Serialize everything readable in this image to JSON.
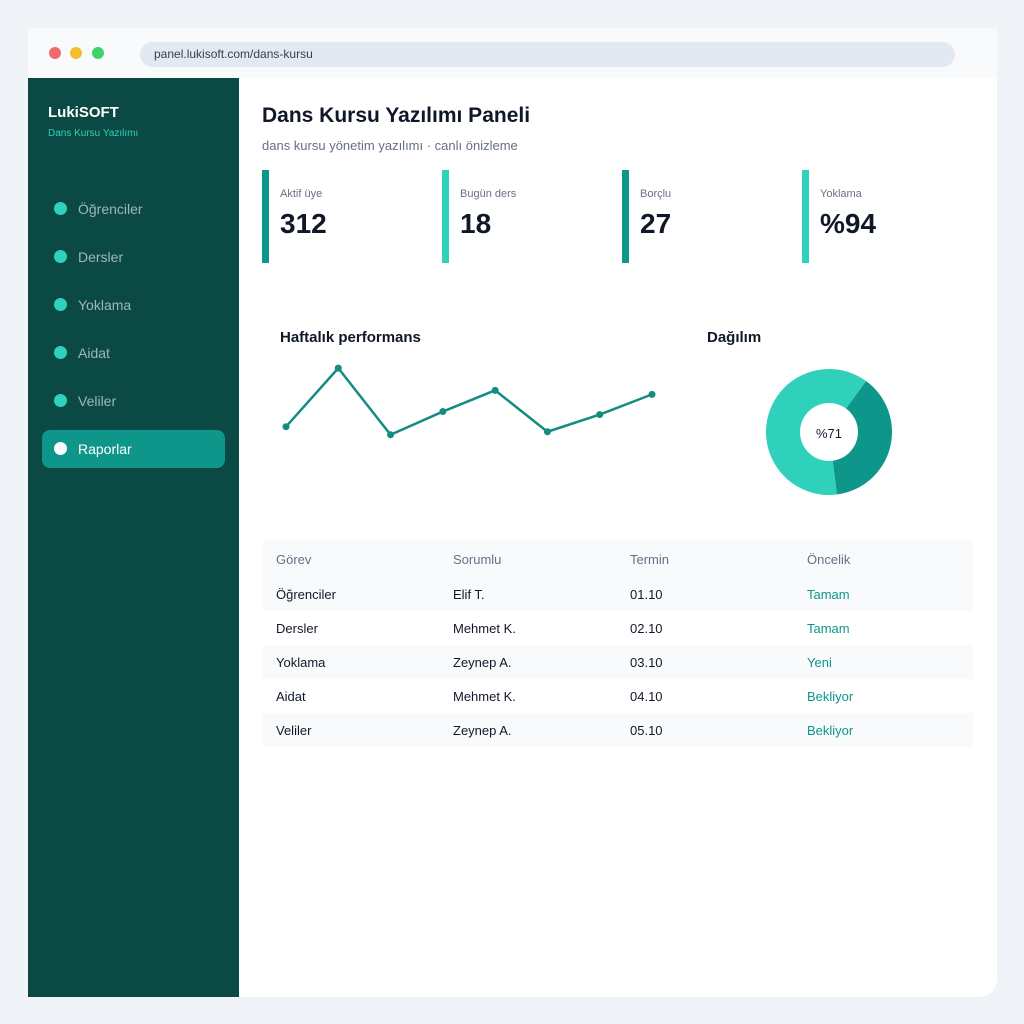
{
  "browser": {
    "url": "panel.lukisoft.com/dans-kursu"
  },
  "sidebar": {
    "brand": "LukiSOFT",
    "brand_sub": "Dans Kursu Yazılımı",
    "items": [
      {
        "label": "Öğrenciler",
        "active": false
      },
      {
        "label": "Dersler",
        "active": false
      },
      {
        "label": "Yoklama",
        "active": false
      },
      {
        "label": "Aidat",
        "active": false
      },
      {
        "label": "Veliler",
        "active": false
      },
      {
        "label": "Raporlar",
        "active": true
      }
    ]
  },
  "header": {
    "title": "Dans Kursu Yazılımı Paneli",
    "subtitle": "dans kursu yönetim yazılımı · canlı önizleme"
  },
  "stats": [
    {
      "label": "Aktif üye",
      "value": "312",
      "color": "#0f968a"
    },
    {
      "label": "Bugün ders",
      "value": "18",
      "color": "#2fd1bb"
    },
    {
      "label": "Borçlu",
      "value": "27",
      "color": "#0f968a"
    },
    {
      "label": "Yoklama",
      "value": "%94",
      "color": "#2fd1bb"
    }
  ],
  "performance": {
    "title": "Haftalık performans"
  },
  "distribution": {
    "title": "Dağılım",
    "center_label": "%71"
  },
  "chart_data": [
    {
      "type": "line",
      "title": "Haftalık performans",
      "x": [
        1,
        2,
        3,
        4,
        5,
        6,
        7,
        8
      ],
      "values": [
        30,
        88,
        22,
        45,
        66,
        25,
        42,
        62
      ],
      "ylim": [
        0,
        100
      ],
      "color": "#148c80",
      "grid": false
    },
    {
      "type": "pie",
      "title": "Dağılım",
      "slices": [
        {
          "value": 38,
          "color": "#0f968a"
        },
        {
          "value": 62,
          "color": "#2fd1bb"
        }
      ],
      "center_label": "%71"
    }
  ],
  "table": {
    "headers": [
      "Görev",
      "Sorumlu",
      "Termin",
      "Öncelik"
    ],
    "rows": [
      [
        "Öğrenciler",
        "Elif T.",
        "01.10",
        "Tamam"
      ],
      [
        "Dersler",
        "Mehmet K.",
        "02.10",
        "Tamam"
      ],
      [
        "Yoklama",
        "Zeynep A.",
        "03.10",
        "Yeni"
      ],
      [
        "Aidat",
        "Mehmet K.",
        "04.10",
        "Bekliyor"
      ],
      [
        "Veliler",
        "Zeynep A.",
        "05.10",
        "Bekliyor"
      ]
    ]
  },
  "colors": {
    "sidebar_bg": "#0b4a44",
    "accent": "#0f968a",
    "accent_light": "#2fd1bb"
  }
}
